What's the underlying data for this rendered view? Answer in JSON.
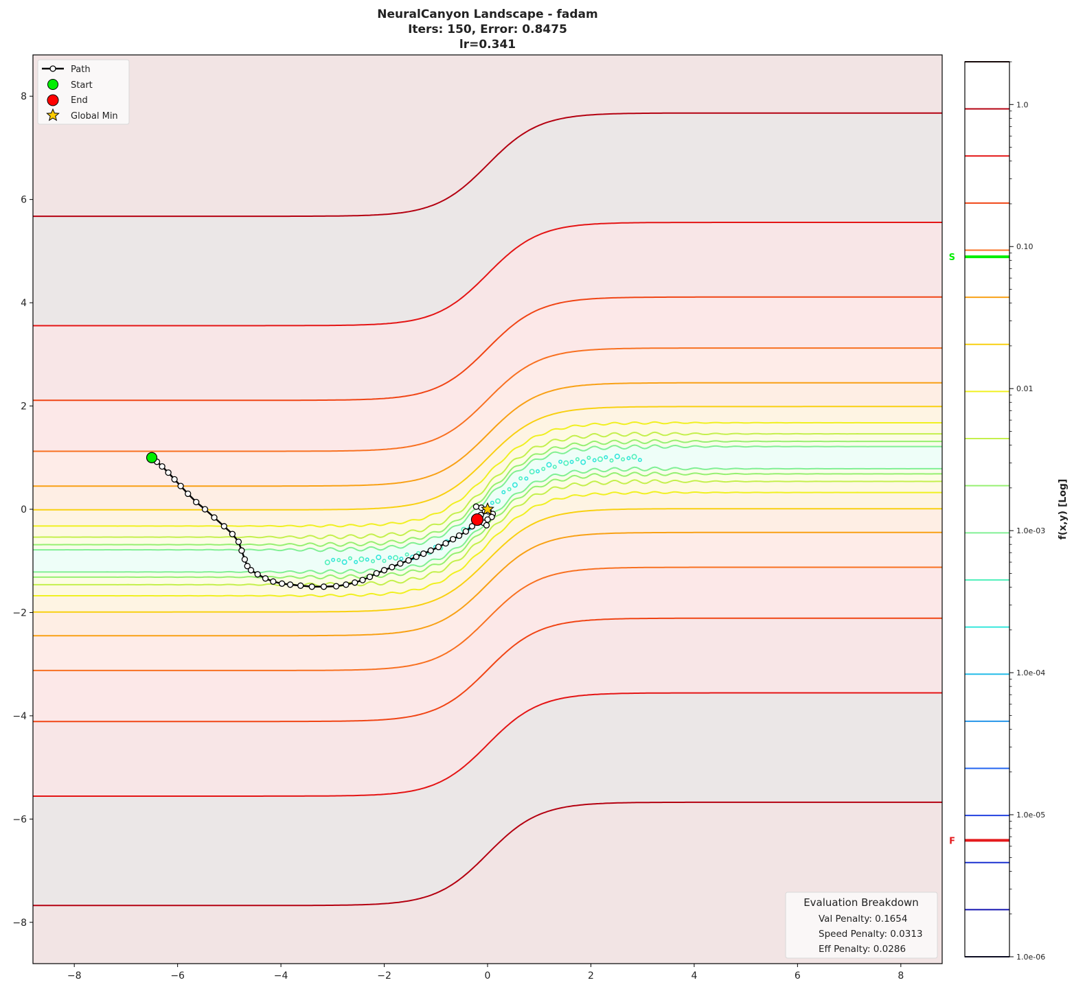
{
  "chart_data": {
    "type": "contour",
    "title": [
      "NeuralCanyon Landscape - fadam",
      "Iters: 150, Error: 0.8475",
      "lr=0.341"
    ],
    "xlim": [
      -8.8,
      8.8
    ],
    "ylim": [
      -8.8,
      8.8
    ],
    "x_ticks": [
      -8,
      -6,
      -4,
      -2,
      0,
      2,
      4,
      6,
      8
    ],
    "y_ticks": [
      -8,
      -6,
      -4,
      -2,
      0,
      2,
      4,
      6,
      8
    ],
    "x_tick_labels": [
      "−8",
      "−6",
      "−4",
      "−2",
      "0",
      "2",
      "4",
      "6",
      "8"
    ],
    "y_tick_labels": [
      "−8",
      "−6",
      "−4",
      "−2",
      "0",
      "2",
      "4",
      "6",
      "8"
    ],
    "grid": false,
    "levels": {
      "count": 20,
      "min": 1e-06,
      "max": 2.0,
      "scale": "log"
    },
    "level_colors": [
      "#1c1c50",
      "#1414b0",
      "#1a30d0",
      "#2040e0",
      "#2063f0",
      "#2494e8",
      "#22bce8",
      "#34e6dc",
      "#52f0bc",
      "#80f094",
      "#96f070",
      "#c4f04c",
      "#f0f020",
      "#f8d010",
      "#f8a014",
      "#f87020",
      "#f04414",
      "#e41414",
      "#b40010",
      "#341010"
    ],
    "colorbar": {
      "label": "f(x,y) [Log]",
      "range": [
        1e-06,
        2.0
      ],
      "ticks": [
        1.0,
        0.1,
        0.01,
        0.001,
        0.0001,
        1e-05,
        1e-06
      ],
      "tick_labels": [
        "1.0",
        "0.10",
        "0.01",
        "1.0e-03",
        "1.0e-04",
        "1.0e-05",
        "1.0e-06"
      ],
      "markers": [
        {
          "label": "S",
          "value": 0.0847,
          "color": "#00ee00"
        },
        {
          "label": "F",
          "value": 6.6e-06,
          "color": "#e41a1c"
        }
      ]
    },
    "path": {
      "name": "Path",
      "points": [
        [
          -6.5,
          1.0
        ],
        [
          -6.4,
          0.92
        ],
        [
          -6.3,
          0.83
        ],
        [
          -6.18,
          0.71
        ],
        [
          -6.06,
          0.58
        ],
        [
          -5.94,
          0.45
        ],
        [
          -5.8,
          0.3
        ],
        [
          -5.64,
          0.14
        ],
        [
          -5.47,
          0.0
        ],
        [
          -5.29,
          -0.16
        ],
        [
          -5.1,
          -0.33
        ],
        [
          -4.94,
          -0.48
        ],
        [
          -4.82,
          -0.63
        ],
        [
          -4.76,
          -0.8
        ],
        [
          -4.7,
          -0.97
        ],
        [
          -4.65,
          -1.1
        ],
        [
          -4.58,
          -1.18
        ],
        [
          -4.45,
          -1.26
        ],
        [
          -4.3,
          -1.34
        ],
        [
          -4.15,
          -1.4
        ],
        [
          -3.98,
          -1.44
        ],
        [
          -3.82,
          -1.46
        ],
        [
          -3.62,
          -1.48
        ],
        [
          -3.4,
          -1.5
        ],
        [
          -3.17,
          -1.5
        ],
        [
          -2.93,
          -1.49
        ],
        [
          -2.74,
          -1.46
        ],
        [
          -2.57,
          -1.42
        ],
        [
          -2.42,
          -1.37
        ],
        [
          -2.28,
          -1.31
        ],
        [
          -2.15,
          -1.24
        ],
        [
          -2.0,
          -1.18
        ],
        [
          -1.85,
          -1.12
        ],
        [
          -1.69,
          -1.05
        ],
        [
          -1.53,
          -0.99
        ],
        [
          -1.38,
          -0.92
        ],
        [
          -1.24,
          -0.86
        ],
        [
          -1.1,
          -0.8
        ],
        [
          -0.95,
          -0.73
        ],
        [
          -0.81,
          -0.66
        ],
        [
          -0.67,
          -0.58
        ],
        [
          -0.55,
          -0.51
        ],
        [
          -0.42,
          -0.43
        ],
        [
          -0.3,
          -0.33
        ],
        [
          -0.19,
          -0.22
        ],
        [
          -0.13,
          -0.11
        ],
        [
          -0.05,
          -0.03
        ],
        [
          -0.22,
          0.05
        ],
        [
          -0.12,
          0.03
        ],
        [
          0.02,
          -0.04
        ],
        [
          0.1,
          -0.09
        ],
        [
          0.08,
          -0.15
        ],
        [
          0.0,
          -0.2
        ],
        [
          -0.08,
          -0.26
        ],
        [
          -0.02,
          -0.31
        ],
        [
          -0.2,
          -0.2
        ]
      ]
    },
    "start": {
      "name": "Start",
      "x": -6.5,
      "y": 1.0,
      "color": "#00ee00"
    },
    "end": {
      "name": "End",
      "x": -0.2,
      "y": -0.2,
      "color": "#ff0000"
    },
    "global_min": {
      "name": "Global Min",
      "x": 0.0,
      "y": 0.0,
      "color": "#ffcc00"
    },
    "legend": {
      "placement": "upper-left",
      "entries": [
        "Path",
        "Start",
        "End",
        "Global Min"
      ]
    },
    "evaluation": {
      "title": "Evaluation Breakdown",
      "rows": [
        "Val Penalty: 0.1654",
        "Speed Penalty: 0.0313",
        "Eff Penalty: 0.0286"
      ],
      "placement": "lower-right"
    }
  }
}
